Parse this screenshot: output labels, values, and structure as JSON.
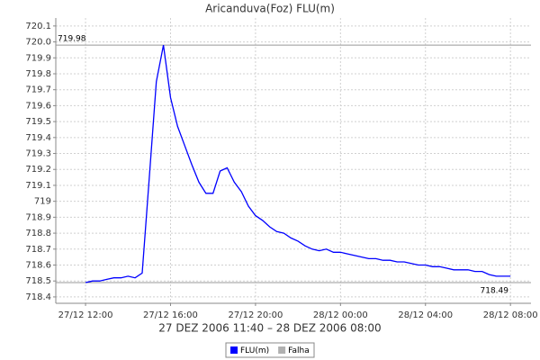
{
  "chart_data": {
    "type": "line",
    "title": "Aricanduva(Foz) FLU(m)",
    "x_label": "27 DEZ 2006 11:40 – 28 DEZ 2006 08:00",
    "x": [
      "27/12 11:40",
      "27/12 12:00",
      "27/12 12:20",
      "27/12 12:40",
      "27/12 13:00",
      "27/12 13:20",
      "27/12 13:40",
      "27/12 14:00",
      "27/12 14:20",
      "27/12 14:40",
      "27/12 15:00",
      "27/12 15:20",
      "27/12 15:40",
      "27/12 16:00",
      "27/12 16:20",
      "27/12 16:40",
      "27/12 17:00",
      "27/12 17:20",
      "27/12 17:40",
      "27/12 18:00",
      "27/12 18:20",
      "27/12 18:40",
      "27/12 19:00",
      "27/12 19:20",
      "27/12 19:40",
      "27/12 20:00",
      "27/12 20:20",
      "27/12 20:40",
      "27/12 21:00",
      "27/12 21:20",
      "27/12 21:40",
      "27/12 22:00",
      "27/12 22:20",
      "27/12 22:40",
      "27/12 23:00",
      "27/12 23:20",
      "27/12 23:40",
      "28/12 00:00",
      "28/12 00:20",
      "28/12 00:40",
      "28/12 01:00",
      "28/12 01:20",
      "28/12 01:40",
      "28/12 02:00",
      "28/12 02:20",
      "28/12 02:40",
      "28/12 03:00",
      "28/12 03:20",
      "28/12 03:40",
      "28/12 04:00",
      "28/12 04:20",
      "28/12 04:40",
      "28/12 05:00",
      "28/12 05:20",
      "28/12 05:40",
      "28/12 06:00",
      "28/12 06:20",
      "28/12 06:40",
      "28/12 07:00",
      "28/12 07:20",
      "28/12 07:40",
      "28/12 08:00"
    ],
    "series": [
      {
        "name": "FLU(m)",
        "color": "#0000ff",
        "values": [
          null,
          718.49,
          718.5,
          718.5,
          718.51,
          718.52,
          718.52,
          718.53,
          718.52,
          718.55,
          719.15,
          719.75,
          719.98,
          719.65,
          719.47,
          719.35,
          719.23,
          719.12,
          719.05,
          719.05,
          719.19,
          719.21,
          719.12,
          719.06,
          718.97,
          718.91,
          718.88,
          718.84,
          718.81,
          718.8,
          718.77,
          718.75,
          718.72,
          718.7,
          718.69,
          718.7,
          718.68,
          718.68,
          718.67,
          718.66,
          718.65,
          718.64,
          718.64,
          718.63,
          718.63,
          718.62,
          718.62,
          718.61,
          718.6,
          718.6,
          718.59,
          718.59,
          718.58,
          718.57,
          718.57,
          718.57,
          718.56,
          718.56,
          718.54,
          718.53,
          718.53,
          718.53
        ]
      },
      {
        "name": "Falha",
        "color": "#b0b0b0",
        "values": [
          718.49,
          718.49,
          null,
          null,
          null,
          null,
          null,
          null,
          null,
          null,
          null,
          null,
          null,
          null,
          null,
          null,
          null,
          null,
          null,
          null,
          null,
          null,
          null,
          null,
          null,
          null,
          null,
          null,
          null,
          null,
          null,
          null,
          null,
          null,
          null,
          null,
          null,
          null,
          null,
          null,
          null,
          null,
          null,
          null,
          null,
          null,
          null,
          null,
          null,
          null,
          null,
          null,
          null,
          null,
          null,
          null,
          null,
          null,
          null,
          null,
          null,
          null
        ]
      }
    ],
    "xlim": [
      "27/12 10:36",
      "28/12 08:58"
    ],
    "xticks": [
      "27/12 12:00",
      "27/12 16:00",
      "27/12 20:00",
      "28/12 00:00",
      "28/12 04:00",
      "28/12 08:00"
    ],
    "ylim": [
      718.36,
      720.15
    ],
    "yticks": [
      718.4,
      718.5,
      718.6,
      718.7,
      718.8,
      718.9,
      719.0,
      719.1,
      719.2,
      719.3,
      719.4,
      719.5,
      719.6,
      719.7,
      719.8,
      719.9,
      {
        "value": 720,
        "label": "720.0"
      },
      720.1
    ],
    "markers": [
      719.98,
      718.49
    ],
    "grid": true,
    "legend": "bottom"
  }
}
